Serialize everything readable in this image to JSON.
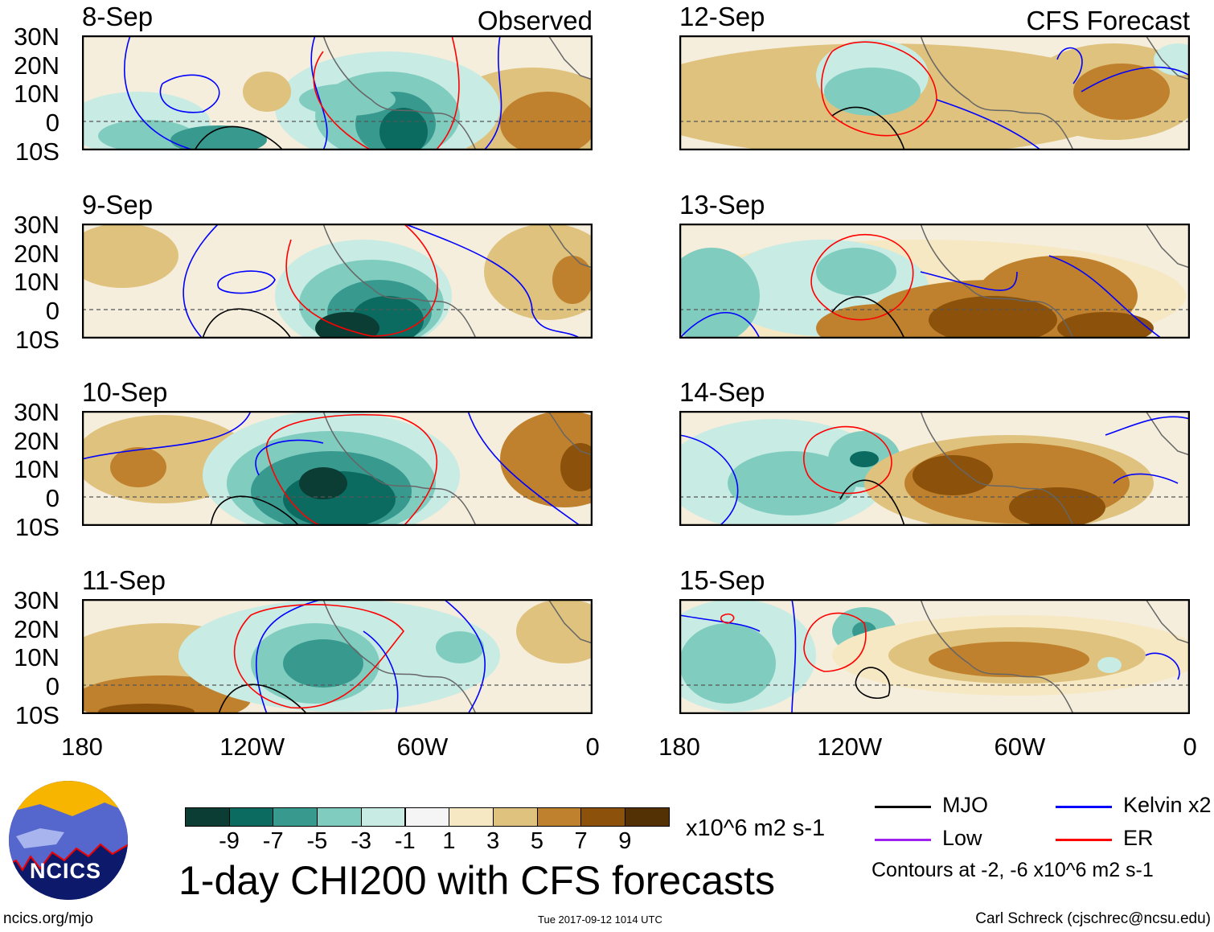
{
  "labels": {
    "observed": "Observed",
    "forecast": "CFS Forecast"
  },
  "chart_data": {
    "type": "heatmap",
    "title": "1-day CHI200 with CFS forecasts",
    "variable": "CHI200",
    "units": "x10^6 m2 s-1",
    "panels": [
      {
        "date": "8-Sep",
        "kind": "Observed"
      },
      {
        "date": "9-Sep",
        "kind": "Observed"
      },
      {
        "date": "10-Sep",
        "kind": "Observed"
      },
      {
        "date": "11-Sep",
        "kind": "Observed"
      },
      {
        "date": "12-Sep",
        "kind": "CFS Forecast"
      },
      {
        "date": "13-Sep",
        "kind": "CFS Forecast"
      },
      {
        "date": "14-Sep",
        "kind": "CFS Forecast"
      },
      {
        "date": "15-Sep",
        "kind": "CFS Forecast"
      }
    ],
    "lat_ticks": [
      "30N",
      "20N",
      "10N",
      "0",
      "10S"
    ],
    "lon_ticks": [
      "180",
      "120W",
      "60W",
      "0"
    ],
    "lat_range": [
      -10,
      30
    ],
    "lon_range": [
      -180,
      0
    ],
    "colorbar": {
      "labels": [
        "-9",
        "-7",
        "-5",
        "-3",
        "-1",
        "1",
        "3",
        "5",
        "7",
        "9"
      ],
      "colors": [
        "#0b3d34",
        "#0b6b60",
        "#389a8f",
        "#80cdc0",
        "#c8ebe4",
        "#f5f5f5",
        "#f6e8c3",
        "#dfc27d",
        "#bf812d",
        "#8c510a",
        "#543005"
      ]
    },
    "legend": [
      {
        "label": "MJO",
        "color": "#000000"
      },
      {
        "label": "Kelvin x2",
        "color": "#0000ff"
      },
      {
        "label": "Low",
        "color": "#a020f0"
      },
      {
        "label": "ER",
        "color": "#ff0000"
      }
    ],
    "contour_note": "Contours at -2, -6 x10^6 m2 s-1"
  },
  "footer": {
    "url": "ncics.org/mjo",
    "timestamp": "Tue 2017-09-12 1014 UTC",
    "author": "Carl Schreck (cjschrec@ncsu.edu)",
    "logo_text": "NCICS"
  }
}
